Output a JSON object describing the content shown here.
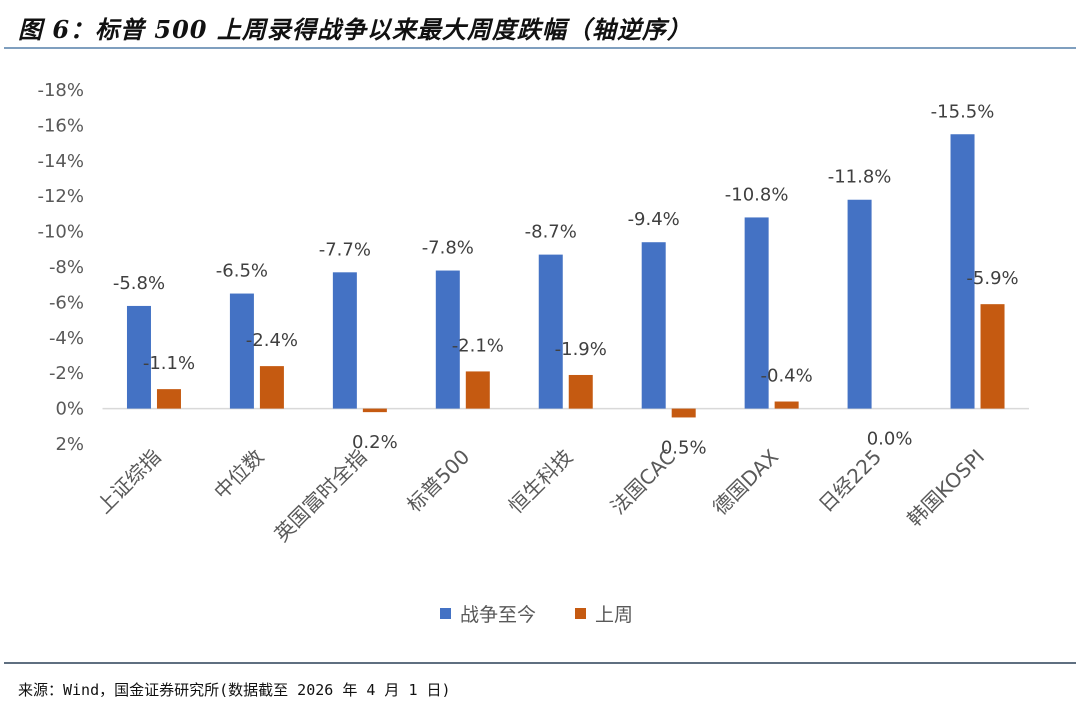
{
  "title": "图 6：标普 500 上周录得战争以来最大周度跌幅（轴逆序）",
  "source": "来源：Wind，国金证券研究所(数据截至 2026 年 4 月 1 日)",
  "chart_data": {
    "type": "bar",
    "title": "图 6：标普 500 上周录得战争以来最大周度跌幅（轴逆序）",
    "categories": [
      "上证综指",
      "中位数",
      "英国富时全指",
      "标普500",
      "恒生科技",
      "法国CAC",
      "德国DAX",
      "日经225",
      "韩国KOSPI"
    ],
    "series": [
      {
        "name": "战争至今",
        "color": "#4472C4",
        "values": [
          -5.8,
          -6.5,
          -7.7,
          -7.8,
          -8.7,
          -9.4,
          -10.8,
          -11.8,
          -15.5
        ],
        "labels": [
          "-5.8%",
          "-6.5%",
          "-7.7%",
          "-7.8%",
          "-8.7%",
          "-9.4%",
          "-10.8%",
          "-11.8%",
          "-15.5%"
        ]
      },
      {
        "name": "上周",
        "color": "#C55A11",
        "values": [
          -1.1,
          -2.4,
          0.2,
          -2.1,
          -1.9,
          0.5,
          -0.4,
          0.0,
          -5.9
        ],
        "labels": [
          "-1.1%",
          "-2.4%",
          "0.2%",
          "-2.1%",
          "-1.9%",
          "0.5%",
          "-0.4%",
          "0.0%",
          "-5.9%"
        ]
      }
    ],
    "ylim": [
      -18,
      2
    ],
    "y_reversed": true,
    "yticks": [
      "-18%",
      "-16%",
      "-14%",
      "-12%",
      "-10%",
      "-8%",
      "-6%",
      "-4%",
      "-2%",
      "0%",
      "2%"
    ],
    "grid": false,
    "legend": "bottom",
    "xlabel": "",
    "ylabel": ""
  }
}
